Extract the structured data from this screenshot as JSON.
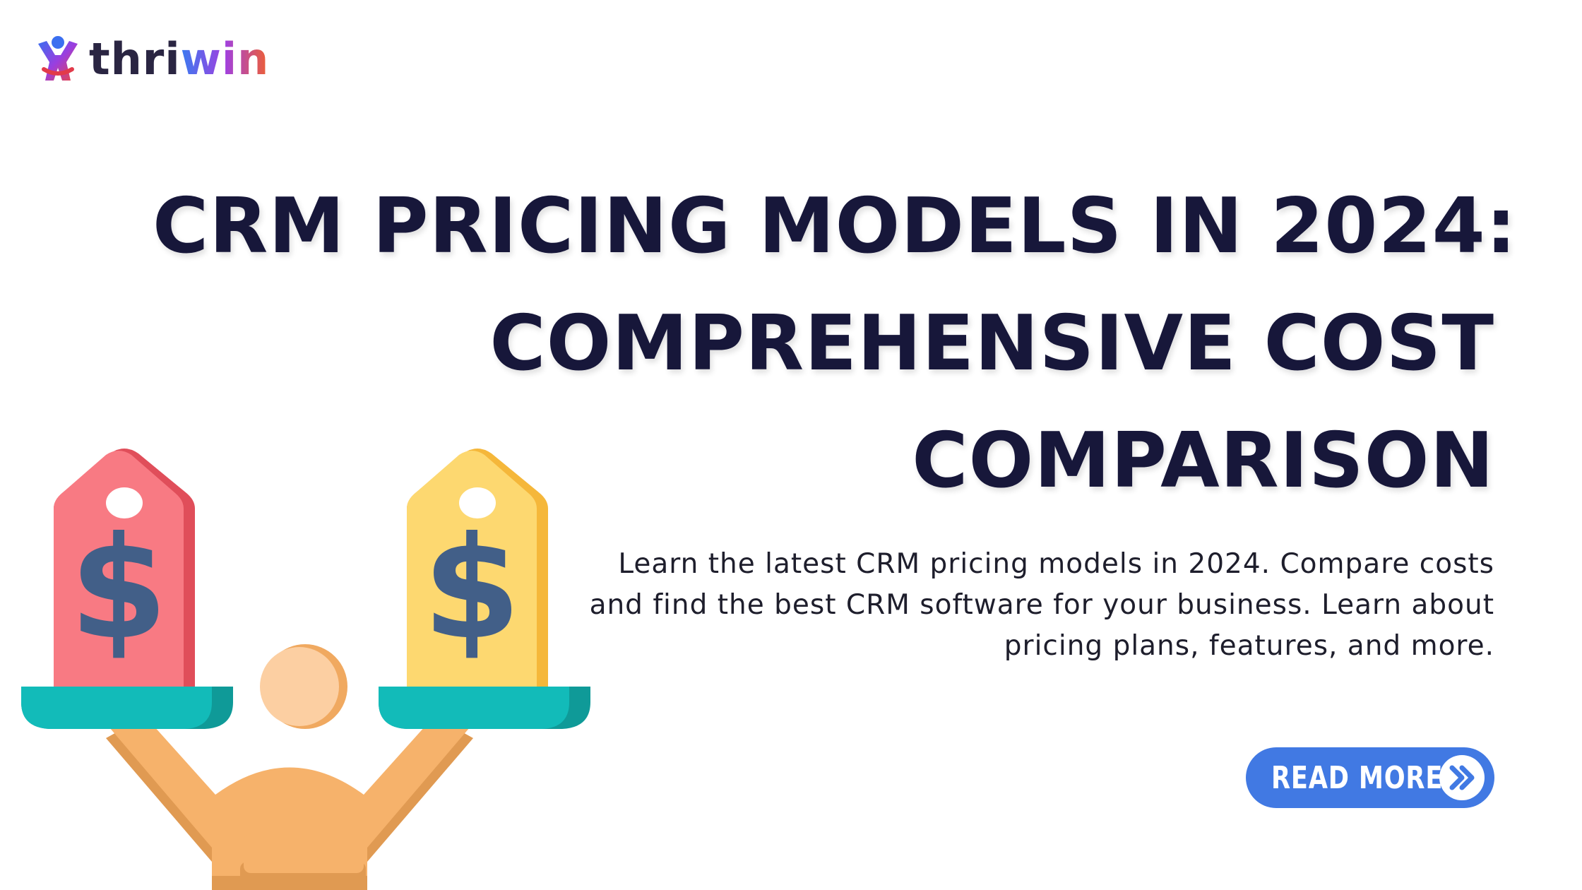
{
  "brand": {
    "name_prefix": "thri",
    "name_accent": "win"
  },
  "headline": {
    "line1": "CRM PRICING MODELS IN 2024:",
    "line2": "COMPREHENSIVE COST",
    "line3": "COMPARISON"
  },
  "description": "Learn the latest CRM pricing models in 2024. Compare costs and find the best CRM software for your business. Learn about pricing plans, features, and more.",
  "cta": {
    "label": "READ MORE",
    "icon": "double-chevron-right-icon"
  },
  "illustration": {
    "description_icon": "balance-scale-person-icon",
    "tags": [
      {
        "symbol": "$",
        "color": "#f87a83"
      },
      {
        "symbol": "$",
        "color": "#fdd870"
      }
    ]
  },
  "colors": {
    "headline": "#17173a",
    "button": "#4179e3",
    "tray": "#12bbb9",
    "person": "#f6b26b",
    "dollar": "#425f88"
  }
}
